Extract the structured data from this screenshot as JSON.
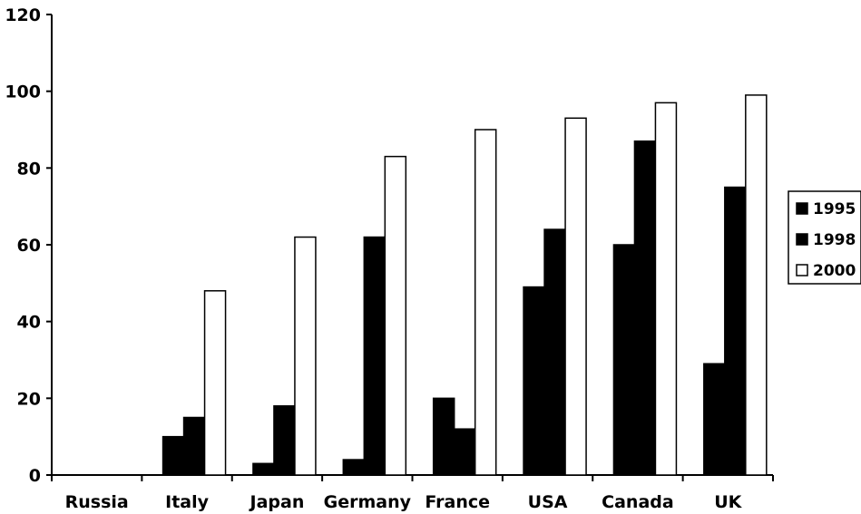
{
  "chart_data": {
    "type": "bar",
    "title": "",
    "xlabel": "",
    "ylabel": "",
    "ylim": [
      0,
      120
    ],
    "yticks": [
      0,
      20,
      40,
      60,
      80,
      100,
      120
    ],
    "grid": false,
    "legend_position": "right",
    "categories": [
      "Russia",
      "Italy",
      "Japan",
      "Germany",
      "France",
      "USA",
      "Canada",
      "UK"
    ],
    "series": [
      {
        "name": "1995",
        "color": "#000000",
        "values": [
          0,
          10,
          3,
          4,
          20,
          49,
          60,
          29
        ]
      },
      {
        "name": "1998",
        "color": "#000000",
        "values": [
          0,
          15,
          18,
          62,
          12,
          64,
          87,
          75
        ]
      },
      {
        "name": "2000",
        "color": "#ffffff",
        "values": [
          0,
          48,
          62,
          83,
          90,
          93,
          97,
          99
        ]
      }
    ]
  }
}
